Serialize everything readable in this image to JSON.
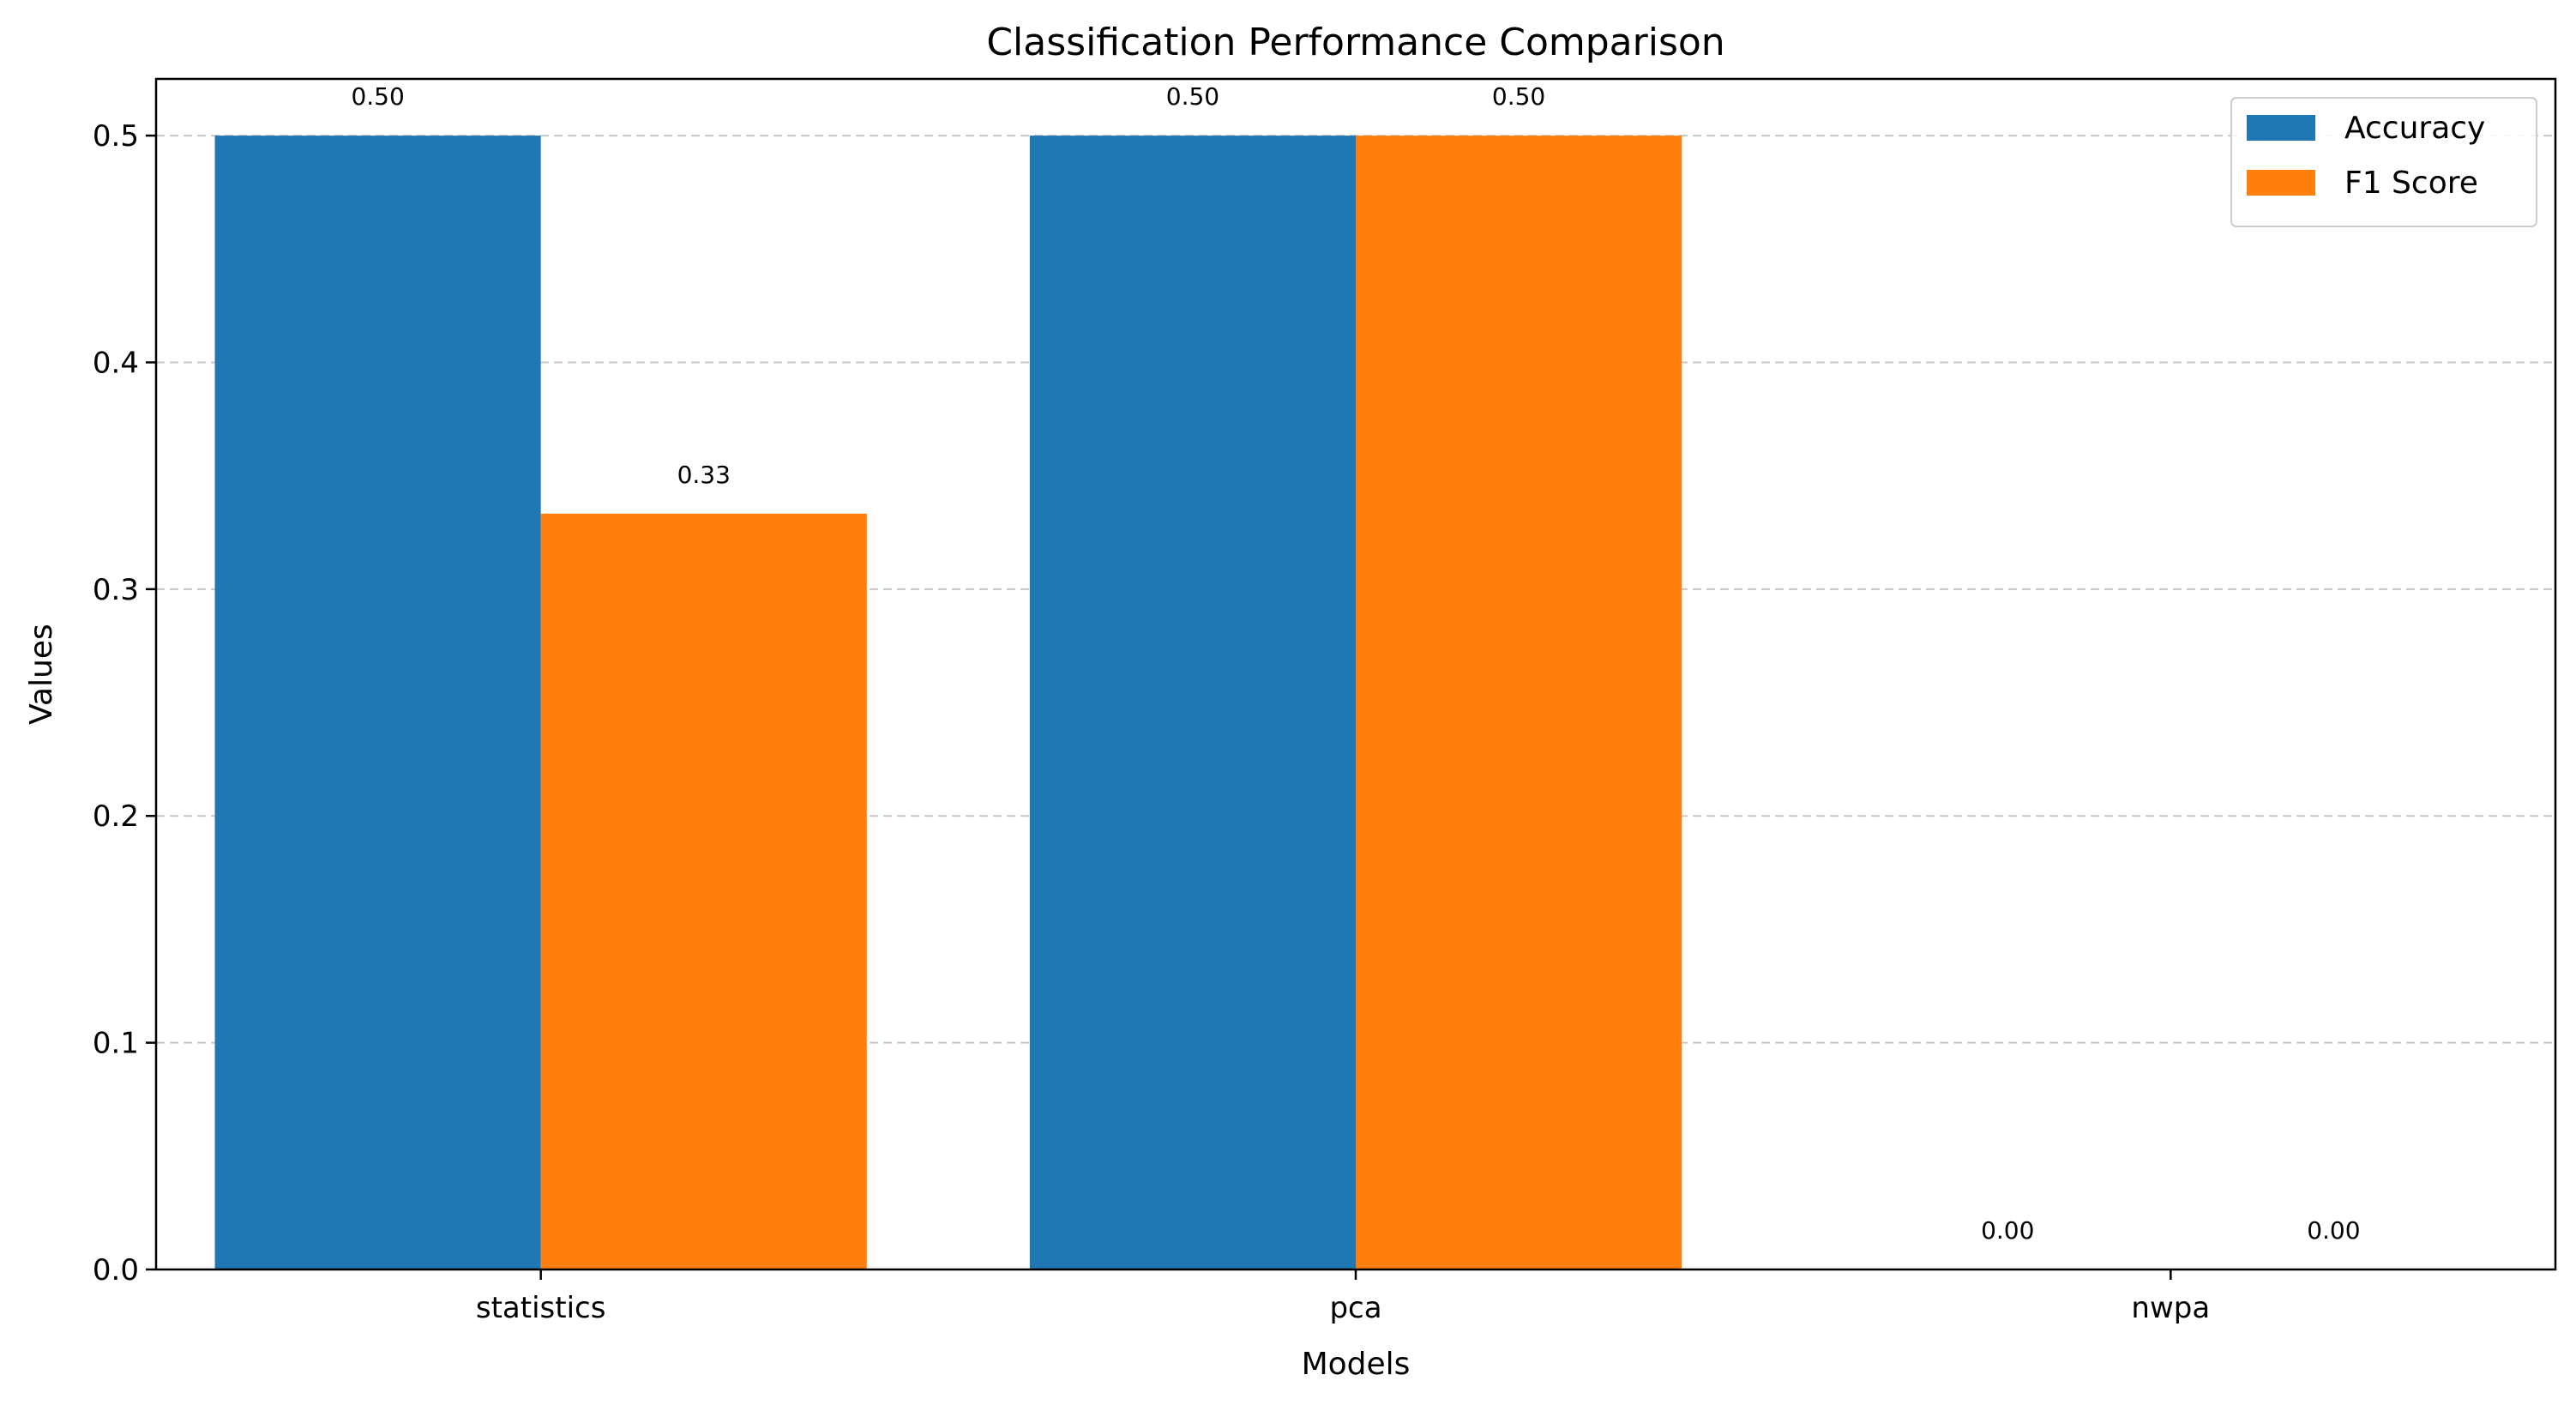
{
  "chart_data": {
    "type": "bar",
    "title": "Classification Performance Comparison",
    "xlabel": "Models",
    "ylabel": "Values",
    "categories": [
      "statistics",
      "pca",
      "nwpa"
    ],
    "series": [
      {
        "name": "Accuracy",
        "color": "#1f77b4",
        "values": [
          0.5,
          0.5,
          0.0
        ],
        "labels": [
          "0.50",
          "0.50",
          "0.00"
        ]
      },
      {
        "name": "F1 Score",
        "color": "#ff7f0e",
        "values": [
          0.3333,
          0.5,
          0.0
        ],
        "labels": [
          "0.33",
          "0.50",
          "0.00"
        ]
      }
    ],
    "ylim": [
      0,
      0.525
    ],
    "yticks": [
      0.0,
      0.1,
      0.2,
      0.3,
      0.4,
      0.5
    ],
    "ytick_labels": [
      "0.0",
      "0.1",
      "0.2",
      "0.3",
      "0.4",
      "0.5"
    ],
    "grid": "y-dashed",
    "legend_position": "top-right"
  }
}
